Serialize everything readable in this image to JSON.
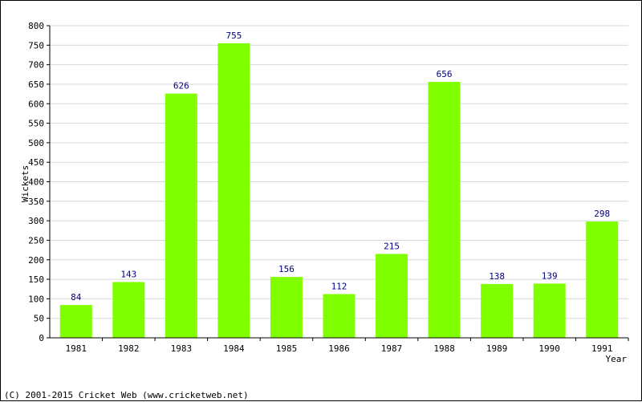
{
  "chart_data": {
    "type": "bar",
    "title": "",
    "xlabel": "Year",
    "ylabel": "Wickets",
    "categories": [
      "1981",
      "1982",
      "1983",
      "1984",
      "1985",
      "1986",
      "1987",
      "1988",
      "1989",
      "1990",
      "1991"
    ],
    "values": [
      84,
      143,
      626,
      755,
      156,
      112,
      215,
      656,
      138,
      139,
      298
    ],
    "data_labels": [
      "84",
      "143",
      "626",
      "755",
      "156",
      "112",
      "215",
      "656",
      "138",
      "139",
      "298"
    ],
    "ylim": [
      0,
      800
    ],
    "yticks": [
      0,
      50,
      100,
      150,
      200,
      250,
      300,
      350,
      400,
      450,
      500,
      550,
      600,
      650,
      700,
      750,
      800
    ],
    "ytick_labels": [
      "0",
      "50",
      "100",
      "150",
      "200",
      "250",
      "300",
      "350",
      "400",
      "450",
      "500",
      "550",
      "600",
      "650",
      "700",
      "750",
      "800"
    ],
    "grid": true,
    "legend": "none"
  },
  "colors": {
    "bar": "#80FF00",
    "grid": "#D8D8D8",
    "data_label": "#000080",
    "axis": "#000000"
  },
  "footer": {
    "copyright": "(C) 2001-2015 Cricket Web (www.cricketweb.net)"
  }
}
